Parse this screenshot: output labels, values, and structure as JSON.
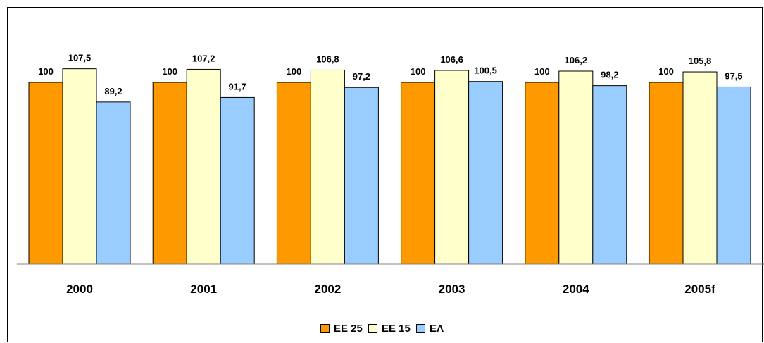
{
  "chart_data": {
    "type": "bar",
    "title": "",
    "categories": [
      "2000",
      "2001",
      "2002",
      "2003",
      "2004",
      "2005f"
    ],
    "series": [
      {
        "name": "ΕΕ 25",
        "color": "#FF9900",
        "values": [
          100,
          100,
          100,
          100,
          100,
          100
        ],
        "labels": [
          "100",
          "100",
          "100",
          "100",
          "100",
          "100"
        ]
      },
      {
        "name": "ΕΕ 15",
        "color": "#FFFFCC",
        "values": [
          107.5,
          107.2,
          106.8,
          106.6,
          106.2,
          105.8
        ],
        "labels": [
          "107,5",
          "107,2",
          "106,8",
          "106,6",
          "106,2",
          "105,8"
        ]
      },
      {
        "name": "ΕΛ",
        "color": "#99CCFF",
        "values": [
          89.2,
          91.7,
          97.2,
          100.5,
          98.2,
          97.5
        ],
        "labels": [
          "89,2",
          "91,7",
          "97,2",
          "100,5",
          "98,2",
          "97,5"
        ]
      }
    ],
    "xlabel": "",
    "ylabel": "",
    "grid": false,
    "legend_position": "bottom"
  }
}
